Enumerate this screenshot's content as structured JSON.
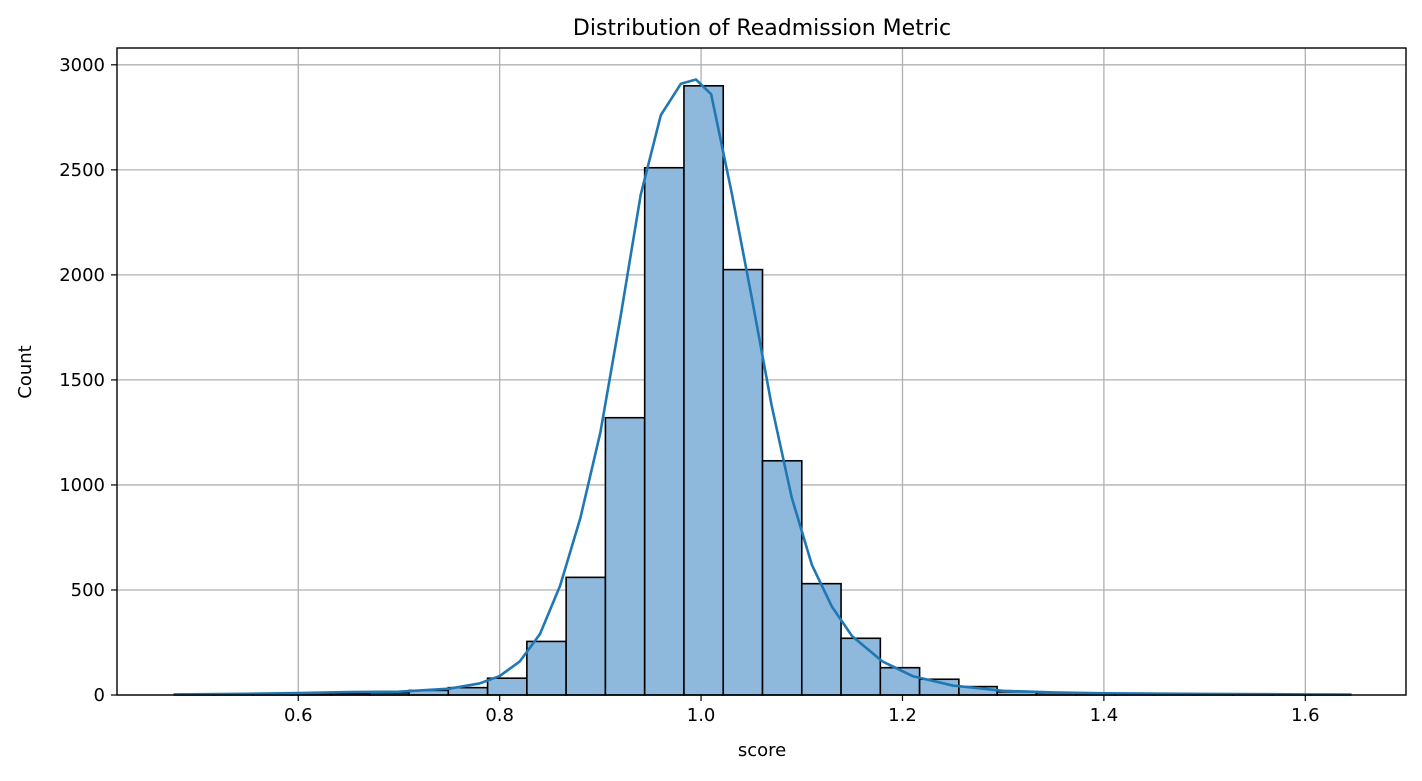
{
  "chart_data": {
    "type": "bar",
    "subtype": "histogram-with-kde",
    "title": "Distribution of Readmission Metric",
    "xlabel": "score",
    "ylabel": "Count",
    "xlim": [
      0.42,
      1.7
    ],
    "ylim": [
      0,
      3080
    ],
    "grid": true,
    "xticks": [
      0.6,
      0.8,
      1.0,
      1.2,
      1.4,
      1.6
    ],
    "xtick_labels": [
      "0.6",
      "0.8",
      "1.0",
      "1.2",
      "1.4",
      "1.6"
    ],
    "yticks": [
      0,
      500,
      1000,
      1500,
      2000,
      2500,
      3000
    ],
    "ytick_labels": [
      "0",
      "500",
      "1000",
      "1500",
      "2000",
      "2500",
      "3000"
    ],
    "bins": [
      {
        "x0": 0.477,
        "x1": 0.516,
        "count": 1
      },
      {
        "x0": 0.516,
        "x1": 0.555,
        "count": 2
      },
      {
        "x0": 0.555,
        "x1": 0.594,
        "count": 3
      },
      {
        "x0": 0.594,
        "x1": 0.633,
        "count": 4
      },
      {
        "x0": 0.633,
        "x1": 0.671,
        "count": 8
      },
      {
        "x0": 0.671,
        "x1": 0.71,
        "count": 10
      },
      {
        "x0": 0.71,
        "x1": 0.749,
        "count": 22
      },
      {
        "x0": 0.749,
        "x1": 0.788,
        "count": 35
      },
      {
        "x0": 0.788,
        "x1": 0.827,
        "count": 80
      },
      {
        "x0": 0.827,
        "x1": 0.866,
        "count": 255
      },
      {
        "x0": 0.866,
        "x1": 0.905,
        "count": 560
      },
      {
        "x0": 0.905,
        "x1": 0.944,
        "count": 1320
      },
      {
        "x0": 0.944,
        "x1": 0.983,
        "count": 2510
      },
      {
        "x0": 0.983,
        "x1": 1.022,
        "count": 2900
      },
      {
        "x0": 1.022,
        "x1": 1.061,
        "count": 2025
      },
      {
        "x0": 1.061,
        "x1": 1.1,
        "count": 1115
      },
      {
        "x0": 1.1,
        "x1": 1.139,
        "count": 530
      },
      {
        "x0": 1.139,
        "x1": 1.178,
        "count": 270
      },
      {
        "x0": 1.178,
        "x1": 1.217,
        "count": 130
      },
      {
        "x0": 1.217,
        "x1": 1.256,
        "count": 75
      },
      {
        "x0": 1.256,
        "x1": 1.294,
        "count": 40
      },
      {
        "x0": 1.294,
        "x1": 1.333,
        "count": 15
      },
      {
        "x0": 1.333,
        "x1": 1.372,
        "count": 10
      },
      {
        "x0": 1.372,
        "x1": 1.411,
        "count": 5
      },
      {
        "x0": 1.411,
        "x1": 1.45,
        "count": 3
      },
      {
        "x0": 1.45,
        "x1": 1.489,
        "count": 2
      },
      {
        "x0": 1.489,
        "x1": 1.528,
        "count": 2
      },
      {
        "x0": 1.528,
        "x1": 1.567,
        "count": 1
      },
      {
        "x0": 1.567,
        "x1": 1.606,
        "count": 1
      },
      {
        "x0": 1.606,
        "x1": 1.645,
        "count": 1
      }
    ],
    "kde": {
      "x": [
        0.477,
        0.55,
        0.6,
        0.65,
        0.7,
        0.75,
        0.78,
        0.8,
        0.82,
        0.84,
        0.86,
        0.88,
        0.9,
        0.92,
        0.94,
        0.96,
        0.98,
        0.995,
        1.01,
        1.03,
        1.05,
        1.07,
        1.09,
        1.11,
        1.13,
        1.15,
        1.18,
        1.21,
        1.25,
        1.3,
        1.35,
        1.4,
        1.5,
        1.6,
        1.645
      ],
      "y": [
        3,
        6,
        9,
        14,
        16,
        30,
        55,
        90,
        160,
        290,
        520,
        840,
        1250,
        1800,
        2380,
        2760,
        2910,
        2930,
        2860,
        2400,
        1900,
        1380,
        940,
        620,
        420,
        280,
        160,
        90,
        45,
        20,
        12,
        8,
        5,
        3,
        2
      ]
    },
    "colors": {
      "bar_fill": "#8fb9dc",
      "bar_edge": "#000000",
      "kde_line": "#1f77b4",
      "grid": "#b0b0b0"
    }
  }
}
